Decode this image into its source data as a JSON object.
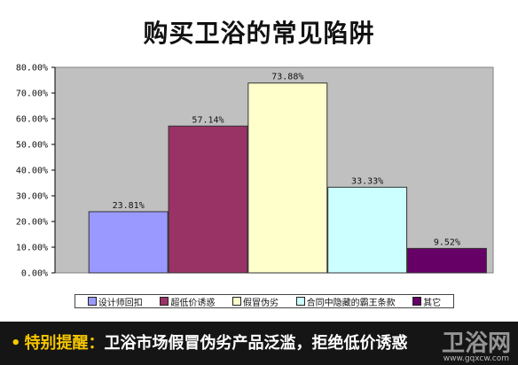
{
  "chart_data": {
    "type": "bar",
    "title": "购买卫浴的常见陷阱",
    "categories": [
      "设计师回扣",
      "超低价诱惑",
      "假冒伪劣",
      "合同中隐藏的霸王条款",
      "其它"
    ],
    "values": [
      23.81,
      57.14,
      73.88,
      33.33,
      9.52
    ],
    "data_labels": [
      "23.81%",
      "57.14%",
      "73.88%",
      "33.33%",
      "9.52%"
    ],
    "colors": [
      "#9999ff",
      "#993366",
      "#ffffcc",
      "#ccffff",
      "#660066"
    ],
    "yticks": [
      "0.00%",
      "10.00%",
      "20.00%",
      "30.00%",
      "40.00%",
      "50.00%",
      "60.00%",
      "70.00%",
      "80.00%"
    ],
    "ylim": [
      0,
      80
    ],
    "grid": false,
    "legend_position": "bottom",
    "plot_background": "#c0c0c0"
  },
  "banner": {
    "dot": "•",
    "label": "特别提醒：",
    "text": "卫浴市场假冒伪劣产品泛滥，拒绝低价诱惑",
    "watermark": "卫浴网",
    "watermark_url": "www.gqxcw.com"
  }
}
